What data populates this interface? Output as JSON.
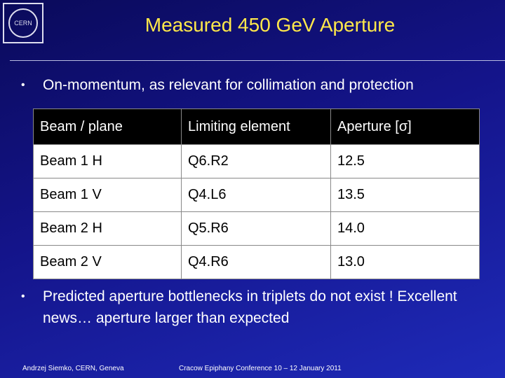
{
  "header": {
    "logo": "CERN",
    "title": "Measured 450 GeV Aperture"
  },
  "bullets": [
    "On-momentum, as relevant for collimation and protection",
    "Predicted aperture bottlenecks in triplets do not exist ! Excellent news… aperture larger than expected"
  ],
  "table": {
    "columns": [
      "Beam / plane",
      "Limiting element",
      "Aperture [σ]"
    ],
    "rows": [
      [
        "Beam 1 H",
        "Q6.R2",
        "12.5"
      ],
      [
        "Beam 1 V",
        "Q4.L6",
        "13.5"
      ],
      [
        "Beam 2 H",
        "Q5.R6",
        "14.0"
      ],
      [
        "Beam 2 V",
        "Q4.R6",
        "13.0"
      ]
    ]
  },
  "footer": {
    "author": "Andrzej Siemko, CERN, Geneva",
    "event": "Cracow Epiphany Conference  10 – 12 January 2011"
  }
}
